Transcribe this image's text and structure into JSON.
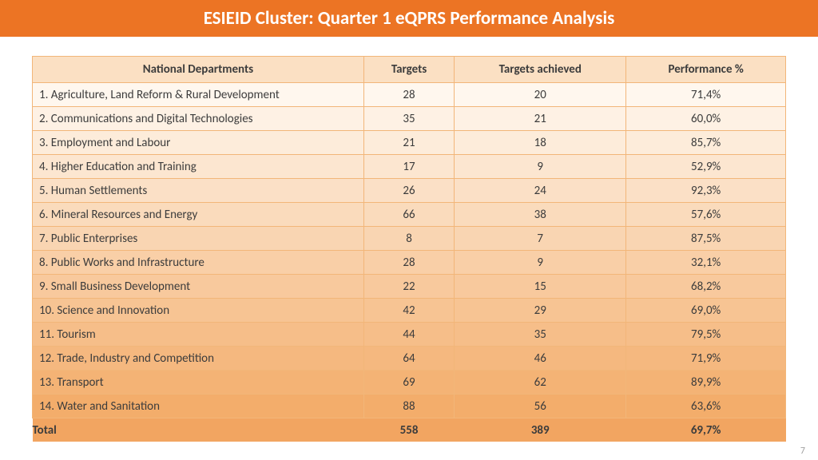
{
  "slide": {
    "title": "ESIEID Cluster: Quarter 1 eQPRS Performance Analysis",
    "page_number": "7"
  },
  "style": {
    "title_bg": "#ec7424",
    "title_fg": "#ffffff",
    "header_bg": "#fbe0c3",
    "border_color": "#f2b679",
    "text_color": "#3c3c3c",
    "row_gradient_top": "#fff7ee",
    "row_gradient_bottom": "#f3ad6b",
    "total_bg": "#f2a561"
  },
  "table": {
    "columns": [
      "National Departments",
      "Targets",
      "Targets achieved",
      "Performance %"
    ],
    "rows": [
      [
        "1. Agriculture, Land Reform & Rural Development",
        "28",
        "20",
        "71,4%"
      ],
      [
        "2. Communications and Digital Technologies",
        "35",
        "21",
        "60,0%"
      ],
      [
        "3. Employment and Labour",
        "21",
        "18",
        "85,7%"
      ],
      [
        "4. Higher Education and Training",
        "17",
        "9",
        "52,9%"
      ],
      [
        "5. Human Settlements",
        "26",
        "24",
        "92,3%"
      ],
      [
        "6. Mineral Resources and Energy",
        "66",
        "38",
        "57,6%"
      ],
      [
        "7. Public Enterprises",
        "8",
        "7",
        "87,5%"
      ],
      [
        "8. Public Works and Infrastructure",
        "28",
        "9",
        "32,1%"
      ],
      [
        "9. Small Business Development",
        "22",
        "15",
        "68,2%"
      ],
      [
        "10. Science and Innovation",
        "42",
        "29",
        "69,0%"
      ],
      [
        "11. Tourism",
        "44",
        "35",
        "79,5%"
      ],
      [
        "12. Trade, Industry and Competition",
        "64",
        "46",
        "71,9%"
      ],
      [
        "13. Transport",
        "69",
        "62",
        "89,9%"
      ],
      [
        "14. Water and Sanitation",
        "88",
        "56",
        "63,6%"
      ]
    ],
    "total": [
      "Total",
      "558",
      "389",
      "69,7%"
    ]
  }
}
